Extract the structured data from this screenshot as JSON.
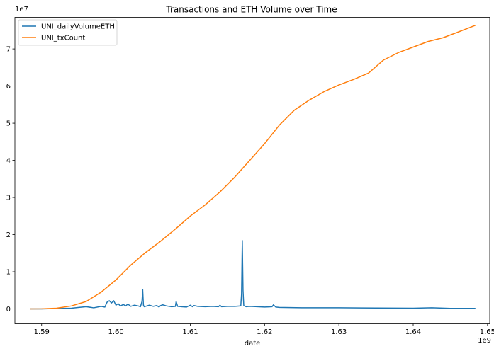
{
  "chart_data": {
    "type": "line",
    "title": "Transactions and ETH Volume over Time",
    "xlabel": "date",
    "ylabel": "",
    "x_offset_label": "1e9",
    "y_offset_label": "1e7",
    "xlim": [
      1.5864,
      1.6503
    ],
    "ylim": [
      -0.4,
      7.85
    ],
    "xticks": [
      1.59,
      1.6,
      1.61,
      1.62,
      1.63,
      1.64,
      1.65
    ],
    "xtick_labels": [
      "1.59",
      "1.60",
      "1.61",
      "1.62",
      "1.63",
      "1.64",
      "1.65"
    ],
    "yticks": [
      0,
      1,
      2,
      3,
      4,
      5,
      6,
      7
    ],
    "ytick_labels": [
      "0",
      "1",
      "2",
      "3",
      "4",
      "5",
      "6",
      "7"
    ],
    "grid": false,
    "legend_position": "top-left",
    "series": [
      {
        "name": "UNI_dailyVolumeETH",
        "color": "#1f77b4",
        "x": [
          1.5885,
          1.59,
          1.592,
          1.594,
          1.595,
          1.596,
          1.597,
          1.598,
          1.5985,
          1.5988,
          1.5991,
          1.5994,
          1.5997,
          1.6,
          1.6003,
          1.6006,
          1.601,
          1.6013,
          1.6016,
          1.602,
          1.6025,
          1.603,
          1.6033,
          1.6035,
          1.6036,
          1.6037,
          1.6038,
          1.604,
          1.6045,
          1.605,
          1.6055,
          1.6058,
          1.606,
          1.6063,
          1.6068,
          1.6075,
          1.608,
          1.6081,
          1.6083,
          1.6088,
          1.6095,
          1.61,
          1.6103,
          1.6105,
          1.611,
          1.612,
          1.613,
          1.6138,
          1.614,
          1.6142,
          1.615,
          1.616,
          1.6168,
          1.6169,
          1.617,
          1.6171,
          1.6172,
          1.6175,
          1.618,
          1.619,
          1.62,
          1.621,
          1.6212,
          1.6215,
          1.622,
          1.625,
          1.63,
          1.635,
          1.64,
          1.6425,
          1.645,
          1.6483
        ],
        "values": [
          0.0,
          0.0,
          0.01,
          0.02,
          0.04,
          0.06,
          0.03,
          0.07,
          0.05,
          0.18,
          0.22,
          0.16,
          0.22,
          0.1,
          0.14,
          0.08,
          0.12,
          0.08,
          0.13,
          0.07,
          0.1,
          0.08,
          0.06,
          0.2,
          0.52,
          0.1,
          0.06,
          0.07,
          0.1,
          0.07,
          0.09,
          0.05,
          0.09,
          0.11,
          0.08,
          0.06,
          0.07,
          0.2,
          0.07,
          0.06,
          0.05,
          0.1,
          0.06,
          0.09,
          0.07,
          0.06,
          0.07,
          0.06,
          0.1,
          0.06,
          0.07,
          0.07,
          0.08,
          0.4,
          1.84,
          0.5,
          0.09,
          0.06,
          0.07,
          0.06,
          0.05,
          0.06,
          0.11,
          0.05,
          0.04,
          0.03,
          0.03,
          0.025,
          0.02,
          0.03,
          0.015,
          0.015
        ]
      },
      {
        "name": "UNI_txCount",
        "color": "#ff7f0e",
        "x": [
          1.5885,
          1.59,
          1.592,
          1.594,
          1.596,
          1.598,
          1.6,
          1.602,
          1.604,
          1.606,
          1.608,
          1.61,
          1.612,
          1.614,
          1.616,
          1.618,
          1.62,
          1.622,
          1.624,
          1.626,
          1.628,
          1.63,
          1.632,
          1.634,
          1.636,
          1.638,
          1.64,
          1.642,
          1.644,
          1.646,
          1.6483
        ],
        "values": [
          0.0,
          0.003,
          0.02,
          0.08,
          0.2,
          0.45,
          0.78,
          1.18,
          1.52,
          1.82,
          2.15,
          2.5,
          2.8,
          3.15,
          3.55,
          4.0,
          4.45,
          4.95,
          5.35,
          5.62,
          5.85,
          6.03,
          6.18,
          6.35,
          6.7,
          6.9,
          7.05,
          7.2,
          7.3,
          7.45,
          7.63
        ]
      }
    ]
  }
}
